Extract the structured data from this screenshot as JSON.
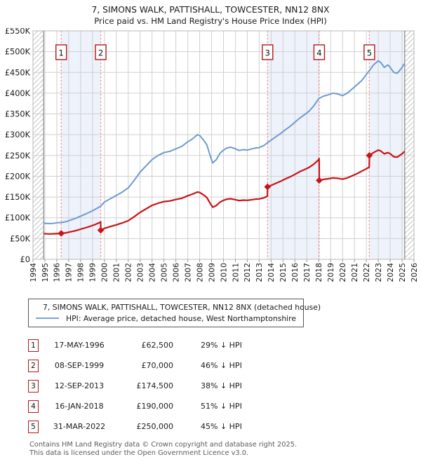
{
  "title": "7, SIMONS WALK, PATTISHALL, TOWCESTER, NN12 8NX",
  "subtitle": "Price paid vs. HM Land Registry's House Price Index (HPI)",
  "chart_data": {
    "type": "line",
    "units": "GBP thousands",
    "x_axis": {
      "tick_years": [
        1994,
        1995,
        1996,
        1997,
        1998,
        1999,
        2000,
        2001,
        2002,
        2003,
        2004,
        2005,
        2006,
        2007,
        2008,
        2009,
        2010,
        2011,
        2012,
        2013,
        2014,
        2015,
        2016,
        2017,
        2018,
        2019,
        2020,
        2021,
        2022,
        2023,
        2024,
        2025,
        2026
      ],
      "range": [
        1994,
        2026
      ]
    },
    "y_axis": {
      "tick_labels": [
        "£0",
        "£50K",
        "£100K",
        "£150K",
        "£200K",
        "£250K",
        "£300K",
        "£350K",
        "£400K",
        "£450K",
        "£500K",
        "£550K"
      ],
      "tick_step_thousands": 50,
      "range_thousands": [
        0,
        550
      ]
    },
    "grid": true,
    "legend_position": "below",
    "series": [
      {
        "name": "7, SIMONS WALK, PATTISHALL, TOWCESTER, NN12 8NX (detached house)",
        "color": "#c81414",
        "points": [
          [
            1994.9,
            62
          ],
          [
            1995.4,
            61
          ],
          [
            1995.8,
            61.5
          ],
          [
            1996.37,
            62.5
          ],
          [
            1996.8,
            64
          ],
          [
            1997.2,
            66.5
          ],
          [
            1997.6,
            69
          ],
          [
            1998,
            72.5
          ],
          [
            1998.4,
            76
          ],
          [
            1998.8,
            79.5
          ],
          [
            1999.2,
            83.5
          ],
          [
            1999.6,
            88.5
          ],
          [
            1999.68,
            90
          ],
          [
            1999.7,
            70
          ],
          [
            2000,
            74.5
          ],
          [
            2000.5,
            79
          ],
          [
            2001,
            83
          ],
          [
            2001.5,
            87.5
          ],
          [
            2002,
            93
          ],
          [
            2002.5,
            102.5
          ],
          [
            2003,
            113
          ],
          [
            2003.5,
            121.5
          ],
          [
            2004,
            130
          ],
          [
            2004.5,
            135
          ],
          [
            2005,
            139
          ],
          [
            2005.5,
            140.5
          ],
          [
            2006,
            144
          ],
          [
            2006.5,
            147
          ],
          [
            2007,
            153
          ],
          [
            2007.4,
            157
          ],
          [
            2007.8,
            162
          ],
          [
            2008,
            161
          ],
          [
            2008.3,
            155.5
          ],
          [
            2008.6,
            149
          ],
          [
            2008.9,
            134
          ],
          [
            2009.1,
            125.5
          ],
          [
            2009.4,
            129.5
          ],
          [
            2009.7,
            137.5
          ],
          [
            2010,
            142
          ],
          [
            2010.3,
            145
          ],
          [
            2010.6,
            146
          ],
          [
            2011,
            143.5
          ],
          [
            2011.3,
            141.5
          ],
          [
            2011.7,
            142.5
          ],
          [
            2012,
            142
          ],
          [
            2012.4,
            143.5
          ],
          [
            2012.7,
            145
          ],
          [
            2013,
            145.5
          ],
          [
            2013.4,
            148
          ],
          [
            2013.69,
            152
          ],
          [
            2013.7,
            174.5
          ],
          [
            2014,
            178
          ],
          [
            2014.4,
            183
          ],
          [
            2014.8,
            188
          ],
          [
            2015.2,
            193.5
          ],
          [
            2015.6,
            198.5
          ],
          [
            2016,
            204.5
          ],
          [
            2016.4,
            211
          ],
          [
            2016.8,
            216
          ],
          [
            2017.2,
            221.5
          ],
          [
            2017.6,
            229.5
          ],
          [
            2018,
            240
          ],
          [
            2018.03,
            243
          ],
          [
            2018.05,
            190
          ],
          [
            2018.4,
            192.5
          ],
          [
            2018.8,
            194
          ],
          [
            2019.2,
            196
          ],
          [
            2019.6,
            195
          ],
          [
            2020,
            193
          ],
          [
            2020.4,
            196
          ],
          [
            2020.8,
            201
          ],
          [
            2021.2,
            206
          ],
          [
            2021.6,
            212
          ],
          [
            2022,
            218
          ],
          [
            2022.24,
            222
          ],
          [
            2022.26,
            250
          ],
          [
            2022.6,
            257
          ],
          [
            2023,
            263
          ],
          [
            2023.2,
            261
          ],
          [
            2023.5,
            254
          ],
          [
            2023.8,
            257
          ],
          [
            2024,
            254
          ],
          [
            2024.3,
            247
          ],
          [
            2024.6,
            246
          ],
          [
            2025,
            254
          ],
          [
            2025.22,
            260
          ]
        ]
      },
      {
        "name": "HPI: Average price, detached house, West Northamptonshire",
        "color": "#6d9bd1",
        "points": [
          [
            1994.9,
            87
          ],
          [
            1995.3,
            86
          ],
          [
            1995.7,
            86.5
          ],
          [
            1996,
            88
          ],
          [
            1996.4,
            88.5
          ],
          [
            1996.8,
            91
          ],
          [
            1997.2,
            95
          ],
          [
            1997.6,
            99
          ],
          [
            1998,
            104
          ],
          [
            1998.4,
            109
          ],
          [
            1998.8,
            114
          ],
          [
            1999.2,
            120
          ],
          [
            1999.7,
            128
          ],
          [
            2000,
            138
          ],
          [
            2000.5,
            146
          ],
          [
            2001,
            154
          ],
          [
            2001.5,
            162
          ],
          [
            2002,
            172
          ],
          [
            2002.5,
            190
          ],
          [
            2003,
            210
          ],
          [
            2003.5,
            225
          ],
          [
            2004,
            240
          ],
          [
            2004.5,
            250
          ],
          [
            2005,
            257
          ],
          [
            2005.5,
            260
          ],
          [
            2006,
            266
          ],
          [
            2006.5,
            272
          ],
          [
            2007,
            283
          ],
          [
            2007.4,
            290
          ],
          [
            2007.8,
            300
          ],
          [
            2008,
            298
          ],
          [
            2008.3,
            288
          ],
          [
            2008.6,
            276
          ],
          [
            2008.9,
            248
          ],
          [
            2009.1,
            232
          ],
          [
            2009.4,
            240
          ],
          [
            2009.7,
            255
          ],
          [
            2010,
            263
          ],
          [
            2010.3,
            268
          ],
          [
            2010.6,
            270
          ],
          [
            2011,
            266
          ],
          [
            2011.3,
            262
          ],
          [
            2011.7,
            264
          ],
          [
            2012,
            263
          ],
          [
            2012.4,
            266
          ],
          [
            2012.7,
            268
          ],
          [
            2013,
            269
          ],
          [
            2013.4,
            274
          ],
          [
            2013.7,
            281
          ],
          [
            2014,
            287
          ],
          [
            2014.4,
            295
          ],
          [
            2014.8,
            303
          ],
          [
            2015.2,
            312
          ],
          [
            2015.6,
            320
          ],
          [
            2016,
            330
          ],
          [
            2016.4,
            340
          ],
          [
            2016.8,
            348
          ],
          [
            2017.2,
            357
          ],
          [
            2017.6,
            370
          ],
          [
            2018,
            387
          ],
          [
            2018.4,
            393
          ],
          [
            2018.8,
            396
          ],
          [
            2019.2,
            400
          ],
          [
            2019.6,
            398
          ],
          [
            2020,
            394
          ],
          [
            2020.4,
            400
          ],
          [
            2020.8,
            410
          ],
          [
            2021.2,
            420
          ],
          [
            2021.6,
            430
          ],
          [
            2022,
            445
          ],
          [
            2022.3,
            456
          ],
          [
            2022.6,
            468
          ],
          [
            2023,
            478
          ],
          [
            2023.2,
            474
          ],
          [
            2023.5,
            462
          ],
          [
            2023.8,
            468
          ],
          [
            2024,
            462
          ],
          [
            2024.3,
            450
          ],
          [
            2024.6,
            448
          ],
          [
            2025,
            462
          ],
          [
            2025.22,
            472
          ]
        ]
      }
    ],
    "sales_markers": [
      {
        "n": "1",
        "year": 1996.37,
        "value": 62.5
      },
      {
        "n": "2",
        "year": 1999.69,
        "value": 70
      },
      {
        "n": "3",
        "year": 2013.7,
        "value": 174.5
      },
      {
        "n": "4",
        "year": 2018.04,
        "value": 190
      },
      {
        "n": "5",
        "year": 2022.25,
        "value": 250
      }
    ],
    "shaded_bands": [
      [
        1996.37,
        1999.69
      ],
      [
        2013.7,
        2018.04
      ],
      [
        2022.25,
        2025.22
      ]
    ],
    "hatch_bands": [
      [
        1994,
        1994.9
      ],
      [
        2025.22,
        2026
      ]
    ],
    "data_bounds": [
      1994.9,
      2025.22
    ],
    "colors": {
      "band_fill": "#eef2fb",
      "grid": "#d0d0d0",
      "plot_border": "#b8b8b8",
      "boundary_line": "#909090",
      "hatch": "#c4c4c4",
      "sale_dashed_line": "#f08e8e",
      "badge_border": "#b21818"
    }
  },
  "legend": {
    "series": [
      {
        "label": "7, SIMONS WALK, PATTISHALL, TOWCESTER, NN12 8NX (detached house)",
        "color": "#cc1111"
      },
      {
        "label": "HPI: Average price, detached house, West Northamptonshire",
        "color": "#7aa5d6"
      }
    ]
  },
  "table": {
    "rows": [
      {
        "n": "1",
        "date": "17-MAY-1996",
        "price": "£62,500",
        "pct": "29% ↓ HPI"
      },
      {
        "n": "2",
        "date": "08-SEP-1999",
        "price": "£70,000",
        "pct": "46% ↓ HPI"
      },
      {
        "n": "3",
        "date": "12-SEP-2013",
        "price": "£174,500",
        "pct": "38% ↓ HPI"
      },
      {
        "n": "4",
        "date": "16-JAN-2018",
        "price": "£190,000",
        "pct": "51% ↓ HPI"
      },
      {
        "n": "5",
        "date": "31-MAR-2022",
        "price": "£250,000",
        "pct": "45% ↓ HPI"
      }
    ]
  },
  "footer": {
    "line1": "Contains HM Land Registry data © Crown copyright and database right 2025.",
    "line2": "This data is licensed under the Open Government Licence v3.0."
  }
}
